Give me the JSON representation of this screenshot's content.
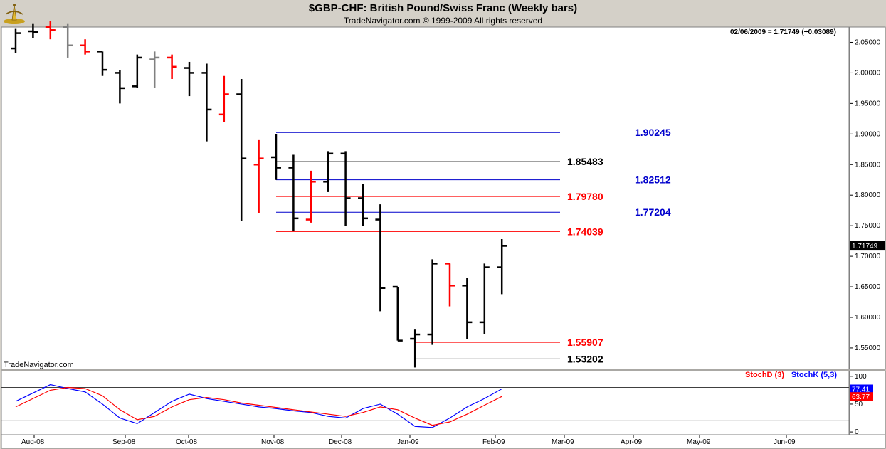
{
  "header": {
    "title": "$GBP-CHF:  British Pound/Swiss Franc  (Weekly bars)",
    "subtitle": "TradeNavigator.com © 1999-2009 All rights reserved"
  },
  "readout": "02/06/2009 = 1.71749 (+0.03089)",
  "watermark": "TradeNavigator.com",
  "colors": {
    "up": "#000000",
    "down": "#ff0000",
    "neutral": "#808080",
    "stochD": "#ff0000",
    "stochK": "#0000ff",
    "blue_level": "#0000cc"
  },
  "chart_data": [
    {
      "type": "ohlc-bar",
      "yticks": [
        1.55,
        1.6,
        1.65,
        1.7,
        1.75,
        1.8,
        1.85,
        1.9,
        1.95,
        2.0,
        2.05
      ],
      "ytick_labels": [
        "1.55000",
        "1.60000",
        "1.65000",
        "1.70000",
        "1.75000",
        "1.80000",
        "1.85000",
        "1.90000",
        "1.95000",
        "2.00000",
        "2.05000"
      ],
      "ylim": [
        1.515,
        2.075
      ],
      "x_labels": [
        "Aug-08",
        "Sep-08",
        "Oct-08",
        "Nov-08",
        "Dec-08",
        "Jan-09",
        "Feb-09",
        "Mar-09",
        "Apr-09",
        "May-09",
        "Jun-09"
      ],
      "last_price_label": "1.71749",
      "last_price": 1.71749,
      "bars": [
        {
          "week": 1,
          "o": 2.04,
          "h": 2.072,
          "l": 2.032,
          "c": 2.065,
          "color": "up"
        },
        {
          "week": 2,
          "o": 2.068,
          "h": 2.08,
          "l": 2.057,
          "c": 2.067,
          "color": "up"
        },
        {
          "week": 3,
          "o": 2.075,
          "h": 2.085,
          "l": 2.055,
          "c": 2.07,
          "color": "down"
        },
        {
          "week": 4,
          "o": 2.075,
          "h": 2.08,
          "l": 2.025,
          "c": 2.045,
          "color": "neutral"
        },
        {
          "week": 5,
          "o": 2.045,
          "h": 2.055,
          "l": 2.03,
          "c": 2.035,
          "color": "down"
        },
        {
          "week": 6,
          "o": 2.035,
          "h": 2.035,
          "l": 1.995,
          "c": 2.005,
          "color": "up"
        },
        {
          "week": 7,
          "o": 2.0,
          "h": 2.005,
          "l": 1.95,
          "c": 1.975,
          "color": "up"
        },
        {
          "week": 8,
          "o": 1.978,
          "h": 2.03,
          "l": 1.975,
          "c": 2.025,
          "color": "up"
        },
        {
          "week": 9,
          "o": 2.022,
          "h": 2.035,
          "l": 1.975,
          "c": 2.025,
          "color": "neutral"
        },
        {
          "week": 10,
          "o": 2.025,
          "h": 2.03,
          "l": 1.99,
          "c": 2.01,
          "color": "down"
        },
        {
          "week": 11,
          "o": 2.008,
          "h": 2.018,
          "l": 1.962,
          "c": 2.0,
          "color": "up"
        },
        {
          "week": 12,
          "o": 2.0,
          "h": 2.015,
          "l": 1.888,
          "c": 1.94,
          "color": "up"
        },
        {
          "week": 13,
          "o": 1.932,
          "h": 1.995,
          "l": 1.92,
          "c": 1.965,
          "color": "down"
        },
        {
          "week": 14,
          "o": 1.965,
          "h": 1.99,
          "l": 1.758,
          "c": 1.86,
          "color": "up"
        },
        {
          "week": 15,
          "o": 1.85,
          "h": 1.89,
          "l": 1.77,
          "c": 1.86,
          "color": "down"
        },
        {
          "week": 16,
          "o": 1.862,
          "h": 1.9,
          "l": 1.825,
          "c": 1.845,
          "color": "up"
        },
        {
          "week": 17,
          "o": 1.845,
          "h": 1.866,
          "l": 1.742,
          "c": 1.762,
          "color": "up"
        },
        {
          "week": 18,
          "o": 1.76,
          "h": 1.84,
          "l": 1.755,
          "c": 1.822,
          "color": "down"
        },
        {
          "week": 19,
          "o": 1.822,
          "h": 1.872,
          "l": 1.805,
          "c": 1.868,
          "color": "up"
        },
        {
          "week": 20,
          "o": 1.868,
          "h": 1.872,
          "l": 1.75,
          "c": 1.795,
          "color": "up"
        },
        {
          "week": 21,
          "o": 1.795,
          "h": 1.818,
          "l": 1.75,
          "c": 1.762,
          "color": "up"
        },
        {
          "week": 22,
          "o": 1.76,
          "h": 1.785,
          "l": 1.61,
          "c": 1.648,
          "color": "up"
        },
        {
          "week": 23,
          "o": 1.65,
          "h": 1.65,
          "l": 1.562,
          "c": 1.562,
          "color": "up"
        },
        {
          "week": 24,
          "o": 1.565,
          "h": 1.58,
          "l": 1.518,
          "c": 1.572,
          "color": "up"
        },
        {
          "week": 25,
          "o": 1.572,
          "h": 1.695,
          "l": 1.555,
          "c": 1.688,
          "color": "up"
        },
        {
          "week": 26,
          "o": 1.688,
          "h": 1.688,
          "l": 1.618,
          "c": 1.652,
          "color": "down"
        },
        {
          "week": 27,
          "o": 1.652,
          "h": 1.665,
          "l": 1.565,
          "c": 1.592,
          "color": "up"
        },
        {
          "week": 28,
          "o": 1.592,
          "h": 1.688,
          "l": 1.572,
          "c": 1.682,
          "color": "up"
        },
        {
          "week": 29,
          "o": 1.682,
          "h": 1.728,
          "l": 1.638,
          "c": 1.717,
          "color": "up"
        }
      ],
      "levels": [
        {
          "value": 1.90245,
          "label": "1.90245",
          "color": "#0000cc",
          "start_week": 16
        },
        {
          "value": 1.85483,
          "label": "1.85483",
          "color": "#000000",
          "start_week": 16
        },
        {
          "value": 1.82512,
          "label": "1.82512",
          "color": "#0000cc",
          "start_week": 16
        },
        {
          "value": 1.7978,
          "label": "1.79780",
          "color": "#ff0000",
          "start_week": 16
        },
        {
          "value": 1.77204,
          "label": "1.77204",
          "color": "#0000cc",
          "start_week": 16
        },
        {
          "value": 1.74039,
          "label": "1.74039",
          "color": "#ff0000",
          "start_week": 16
        },
        {
          "value": 1.55907,
          "label": "1.55907",
          "color": "#ff0000",
          "start_week": 24
        },
        {
          "value": 1.53202,
          "label": "1.53202",
          "color": "#000000",
          "start_week": 24
        }
      ]
    },
    {
      "type": "line",
      "name": "Stochastic",
      "legend": [
        {
          "label": "StochD (3)",
          "color": "#ff0000"
        },
        {
          "label": "StochK (5,3)",
          "color": "#0000ff"
        }
      ],
      "yticks": [
        0,
        50,
        100
      ],
      "ylim": [
        -5,
        110
      ],
      "guide_lines": [
        20,
        80
      ],
      "last_k_label": "77.41",
      "last_d_label": "63.77",
      "series": [
        {
          "name": "StochK (5,3)",
          "color": "#0000ff",
          "values": [
            55,
            70,
            85,
            78,
            72,
            50,
            25,
            15,
            35,
            55,
            68,
            60,
            55,
            50,
            45,
            42,
            38,
            35,
            28,
            25,
            42,
            50,
            32,
            10,
            8,
            25,
            45,
            60,
            77.41
          ]
        },
        {
          "name": "StochD (3)",
          "color": "#ff0000",
          "values": [
            45,
            60,
            75,
            80,
            78,
            65,
            40,
            22,
            28,
            45,
            58,
            62,
            58,
            52,
            48,
            44,
            40,
            36,
            32,
            28,
            35,
            45,
            40,
            25,
            12,
            18,
            32,
            48,
            63.77
          ]
        }
      ]
    }
  ]
}
